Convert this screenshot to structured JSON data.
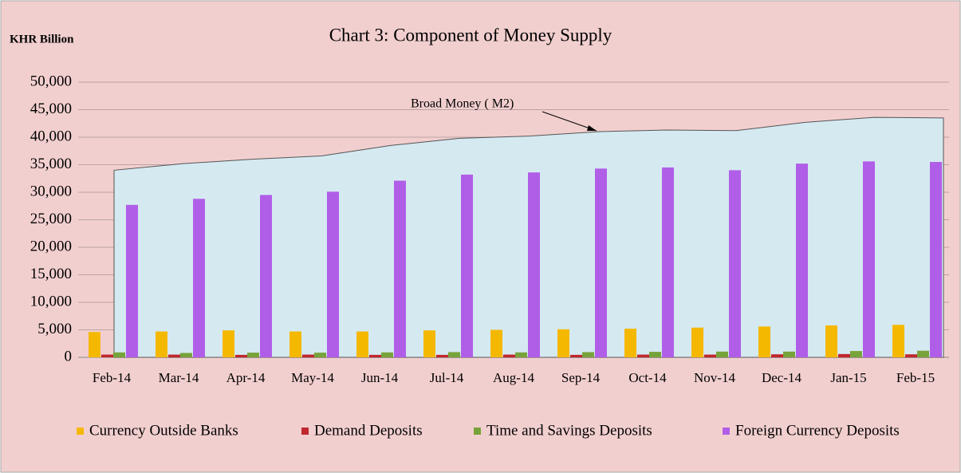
{
  "chart_data": {
    "type": "bar_area",
    "title": "Chart 3: Component of Money Supply",
    "y_axis_label": "KHR Billion",
    "categories": [
      "Feb-14",
      "Mar-14",
      "Apr-14",
      "May-14",
      "Jun-14",
      "Jul-14",
      "Aug-14",
      "Sep-14",
      "Oct-14",
      "Nov-14",
      "Dec-14",
      "Jan-15",
      "Feb-15"
    ],
    "area": {
      "name": "Broad Money ( M2)",
      "color": "#d5e9f1",
      "values": [
        34000,
        35200,
        36000,
        36600,
        38500,
        39800,
        40200,
        41000,
        41300,
        41200,
        42700,
        43600,
        43500
      ]
    },
    "series": [
      {
        "name": "Currency Outside Banks",
        "color": "#f5b800",
        "values": [
          4600,
          4700,
          4900,
          4700,
          4700,
          4900,
          5000,
          5100,
          5200,
          5400,
          5600,
          5800,
          5900
        ]
      },
      {
        "name": "Demand Deposits",
        "color": "#c0272d",
        "values": [
          500,
          500,
          450,
          500,
          450,
          450,
          500,
          450,
          500,
          500,
          550,
          600,
          550
        ]
      },
      {
        "name": "Time and Savings Deposits",
        "color": "#77a33a",
        "values": [
          900,
          800,
          850,
          850,
          900,
          950,
          900,
          950,
          1000,
          1050,
          1050,
          1150,
          1200
        ]
      },
      {
        "name": "Foreign Currency Deposits",
        "color": "#b05ee8",
        "values": [
          27700,
          28800,
          29500,
          30100,
          32100,
          33200,
          33600,
          34300,
          34500,
          34000,
          35200,
          35600,
          35500
        ]
      }
    ],
    "ylim": [
      0,
      50000
    ],
    "yticks": [
      0,
      {
        "value": 5000,
        "label": "5,000"
      },
      {
        "value": 10000,
        "label": "10,000"
      },
      {
        "value": 15000,
        "label": "15,000"
      },
      {
        "value": 20000,
        "label": "20,000"
      },
      {
        "value": 25000,
        "label": "25,000"
      },
      {
        "value": 30000,
        "label": "30,000"
      },
      {
        "value": 35000,
        "label": "35,000"
      },
      {
        "value": 40000,
        "label": "40,000"
      },
      {
        "value": 45000,
        "label": "45,000"
      },
      {
        "value": 50000,
        "label": "50,000"
      }
    ],
    "grid": true
  }
}
